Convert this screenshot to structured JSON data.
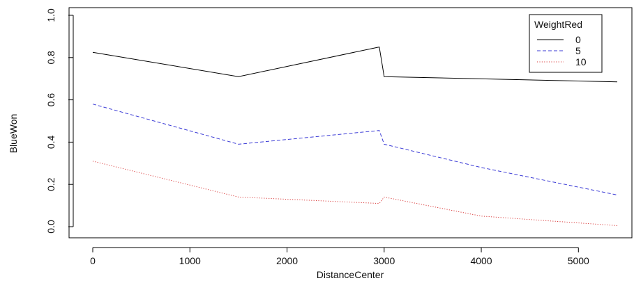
{
  "chart_data": {
    "type": "line",
    "title": "",
    "xlabel": "DistanceCenter",
    "ylabel": "BlueWon",
    "xlim": [
      0,
      5400
    ],
    "ylim": [
      0,
      1.0
    ],
    "x_ticks": [
      0,
      1000,
      2000,
      3000,
      4000,
      5000
    ],
    "x_tick_labels": [
      "0",
      "1000",
      "2000",
      "3000",
      "4000",
      "5000"
    ],
    "y_ticks": [
      0.0,
      0.2,
      0.4,
      0.6,
      0.8,
      1.0
    ],
    "y_tick_labels": [
      "0.0",
      "0.2",
      "0.4",
      "0.6",
      "0.8",
      "1.0"
    ],
    "grid": false,
    "legend": {
      "title": "WeightRed",
      "position": "top-right"
    },
    "series": [
      {
        "name": "0",
        "color": "#000000",
        "style": "solid",
        "x": [
          0,
          1500,
          2950,
          3000,
          5400
        ],
        "y": [
          0.825,
          0.71,
          0.85,
          0.71,
          0.685
        ]
      },
      {
        "name": "5",
        "color": "#3b3bd6",
        "style": "dashed",
        "x": [
          0,
          1500,
          2950,
          3000,
          4000,
          5400
        ],
        "y": [
          0.58,
          0.39,
          0.455,
          0.39,
          0.28,
          0.15
        ]
      },
      {
        "name": "10",
        "color": "#d93a3a",
        "style": "dotted",
        "x": [
          0,
          1500,
          2950,
          3000,
          4000,
          5400
        ],
        "y": [
          0.31,
          0.14,
          0.11,
          0.14,
          0.05,
          0.005
        ]
      }
    ]
  }
}
